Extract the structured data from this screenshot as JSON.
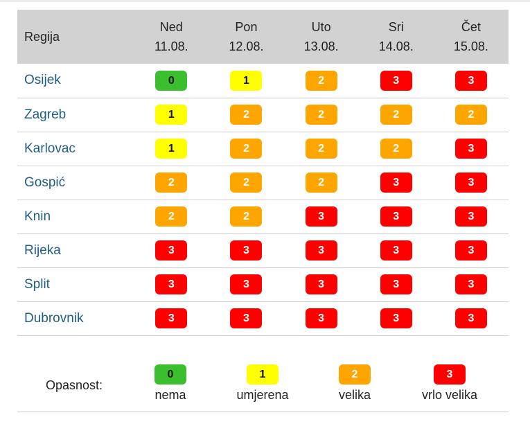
{
  "table": {
    "region_header": "Regija",
    "days": [
      {
        "name": "Ned",
        "date": "11.08."
      },
      {
        "name": "Pon",
        "date": "12.08."
      },
      {
        "name": "Uto",
        "date": "13.08."
      },
      {
        "name": "Sri",
        "date": "14.08."
      },
      {
        "name": "Čet",
        "date": "15.08."
      }
    ],
    "rows": [
      {
        "region": "Osijek",
        "levels": [
          "0",
          "1",
          "2",
          "3",
          "3"
        ]
      },
      {
        "region": "Zagreb",
        "levels": [
          "1",
          "2",
          "2",
          "2",
          "2"
        ]
      },
      {
        "region": "Karlovac",
        "levels": [
          "1",
          "2",
          "2",
          "2",
          "3"
        ]
      },
      {
        "region": "Gospić",
        "levels": [
          "2",
          "2",
          "2",
          "3",
          "3"
        ]
      },
      {
        "region": "Knin",
        "levels": [
          "2",
          "2",
          "3",
          "3",
          "3"
        ]
      },
      {
        "region": "Rijeka",
        "levels": [
          "3",
          "3",
          "3",
          "3",
          "3"
        ]
      },
      {
        "region": "Split",
        "levels": [
          "3",
          "3",
          "3",
          "3",
          "3"
        ]
      },
      {
        "region": "Dubrovnik",
        "levels": [
          "3",
          "3",
          "3",
          "3",
          "3"
        ]
      }
    ]
  },
  "legend": {
    "title": "Opasnost:",
    "items": [
      {
        "level": "0",
        "label": "nema"
      },
      {
        "level": "1",
        "label": "umjerena"
      },
      {
        "level": "2",
        "label": "velika"
      },
      {
        "level": "3",
        "label": "vrlo velika"
      }
    ]
  },
  "colors": {
    "level_0": "#3cbf2f",
    "level_1": "#ffff00",
    "level_2": "#ffa500",
    "level_3": "#ff0000",
    "header_bg": "#d2d2d2",
    "region_text": "#1f5d83"
  }
}
